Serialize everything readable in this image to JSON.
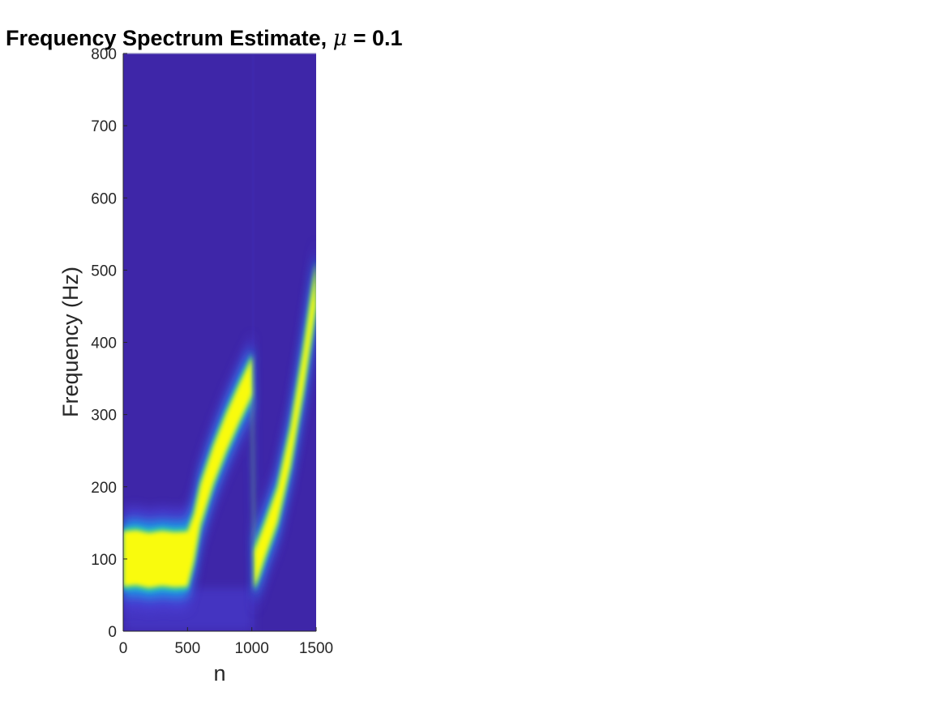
{
  "chart_data": {
    "type": "heatmap",
    "title": "Frequency Spectrum Estimate,",
    "title_symbol": "μ",
    "title_suffix": " = 0.1",
    "xlabel": "n",
    "ylabel": "Frequency (Hz)",
    "xlim": [
      0,
      1500
    ],
    "ylim": [
      0,
      800
    ],
    "x_ticks": [
      0,
      500,
      1000,
      1500
    ],
    "y_ticks": [
      0,
      100,
      200,
      300,
      400,
      500,
      600,
      700,
      800
    ],
    "x_tick_labels": [
      "0",
      "500",
      "1000",
      "1500"
    ],
    "y_tick_labels": [
      "0",
      "100",
      "200",
      "300",
      "400",
      "500",
      "600",
      "700",
      "800"
    ],
    "colormap": "parula",
    "colors": {
      "background": "#3e26a8",
      "low": "#4a3fd6",
      "mid": "#1f9ee8",
      "teal": "#25c6b2",
      "high": "#f9fb0e"
    },
    "grid": false,
    "ridge": {
      "n": [
        0,
        100,
        200,
        300,
        400,
        500,
        550,
        600,
        700,
        800,
        900,
        980,
        1000,
        1020,
        1050,
        1100,
        1200,
        1300,
        1400,
        1500
      ],
      "frequency_hz": [
        100,
        102,
        98,
        101,
        99,
        100,
        130,
        175,
        230,
        275,
        315,
        345,
        355,
        85,
        100,
        125,
        175,
        255,
        360,
        480
      ],
      "half_width_hz": [
        38,
        38,
        38,
        38,
        38,
        38,
        32,
        28,
        26,
        26,
        26,
        26,
        26,
        26,
        26,
        24,
        24,
        26,
        28,
        30
      ]
    }
  }
}
